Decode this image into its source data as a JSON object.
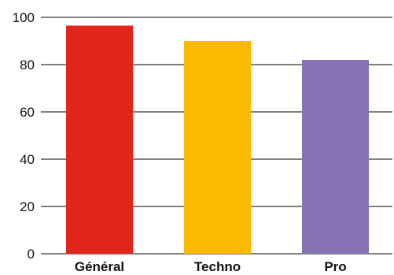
{
  "chart_data": {
    "type": "bar",
    "title": "",
    "xlabel": "",
    "ylabel": "",
    "categories": [
      "Général",
      "Techno",
      "Pro"
    ],
    "values": [
      96.5,
      90,
      82
    ],
    "colors": [
      "#e4251b",
      "#fbb900",
      "#8573b3"
    ],
    "ylim": [
      0,
      100
    ],
    "yticks": [
      0,
      20,
      40,
      60,
      80,
      100
    ],
    "grid": true,
    "legend": "none"
  }
}
